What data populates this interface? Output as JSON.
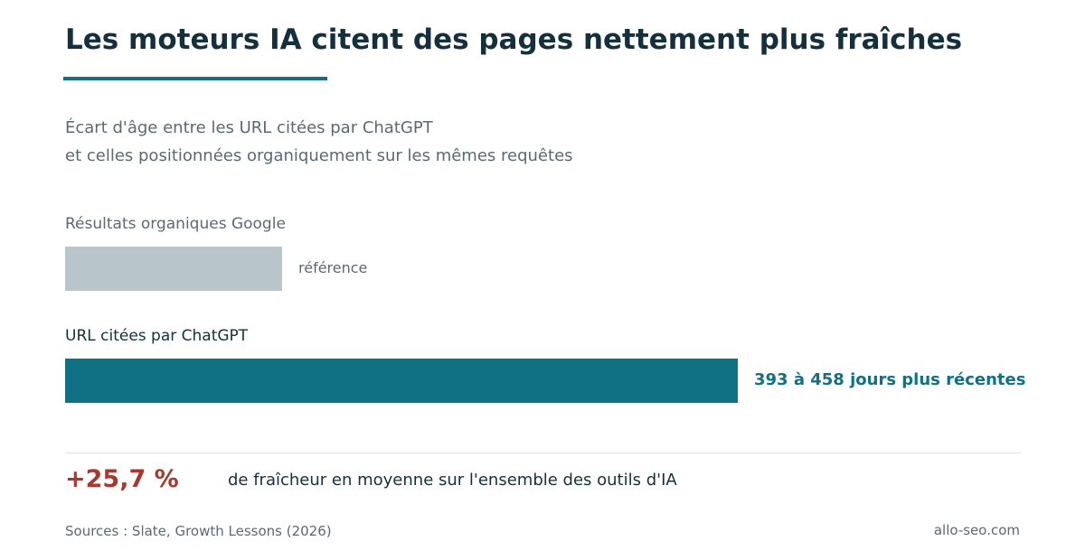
{
  "title": "Les moteurs IA citent des pages nettement plus fraîches",
  "subtitle": {
    "line1": "Écart d'âge entre les URL citées par ChatGPT",
    "line2": "et celles positionnées organiquement sur les mêmes requêtes"
  },
  "colors": {
    "accent": "#0f7183",
    "reference_bar": "#b8c5ca",
    "highlight": "#a63a2e",
    "title_text": "#14303e",
    "muted_text": "#5a6a73"
  },
  "chart_data": {
    "type": "bar",
    "orientation": "horizontal",
    "title": "Les moteurs IA citent des pages nettement plus fraîches",
    "categories": [
      "Résultats organiques Google",
      "URL citées par ChatGPT"
    ],
    "values": [
      1,
      3.1
    ],
    "annotations": [
      "référence",
      "393 à 458 jours plus récentes"
    ],
    "grid": false,
    "legend": "none"
  },
  "stat": {
    "value": "+25,7 %",
    "text": "de fraîcheur en moyenne sur l'ensemble des outils d'IA"
  },
  "footer": {
    "source": "Sources : Slate, Growth Lessons (2026)",
    "brand": "allo-seo.com"
  }
}
